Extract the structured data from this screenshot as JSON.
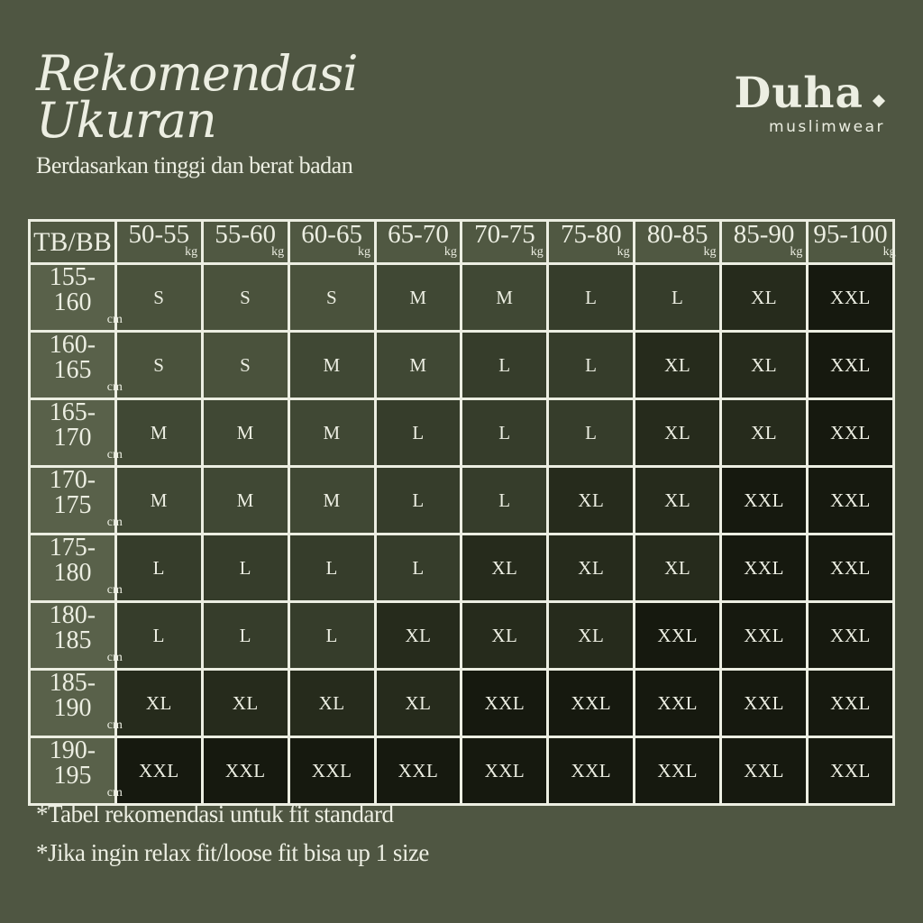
{
  "colors": {
    "background": "#4f5642",
    "border": "#eceee2",
    "text": "#eceee2",
    "header_cell_bg": "#505842",
    "label_cell_bg": "#59614a"
  },
  "header": {
    "title_line1": "Rekomendasi",
    "title_line2": "Ukuran",
    "subtitle": "Berdasarkan tinggi dan berat badan"
  },
  "brand": {
    "name": "Duha",
    "mark": "diamond-icon",
    "tagline": "muslimwear"
  },
  "notes": {
    "line1": "*Tabel rekomendasi untuk fit standard",
    "line2": "*Jika ingin relax fit/loose fit bisa up 1 size"
  },
  "chart_data": {
    "type": "table",
    "title": "Rekomendasi Ukuran",
    "subtitle": "Berdasarkan tinggi dan berat badan",
    "corner_label": "TB/BB",
    "col_header_unit": "kg",
    "row_header_unit": "cm",
    "weight_ranges_kg": [
      "50-55",
      "55-60",
      "60-65",
      "65-70",
      "70-75",
      "75-80",
      "80-85",
      "85-90",
      "95-100"
    ],
    "height_ranges_cm": [
      "155-160",
      "160-165",
      "165-170",
      "170-175",
      "175-180",
      "180-185",
      "185-190",
      "190-195"
    ],
    "sizes": [
      [
        "S",
        "S",
        "S",
        "M",
        "M",
        "L",
        "L",
        "XL",
        "XXL"
      ],
      [
        "S",
        "S",
        "M",
        "M",
        "L",
        "L",
        "XL",
        "XL",
        "XXL"
      ],
      [
        "M",
        "M",
        "M",
        "L",
        "L",
        "L",
        "XL",
        "XL",
        "XXL"
      ],
      [
        "M",
        "M",
        "M",
        "L",
        "L",
        "XL",
        "XL",
        "XXL",
        "XXL"
      ],
      [
        "L",
        "L",
        "L",
        "L",
        "XL",
        "XL",
        "XL",
        "XXL",
        "XXL"
      ],
      [
        "L",
        "L",
        "L",
        "XL",
        "XL",
        "XL",
        "XXL",
        "XXL",
        "XXL"
      ],
      [
        "XL",
        "XL",
        "XL",
        "XL",
        "XXL",
        "XXL",
        "XXL",
        "XXL",
        "XXL"
      ],
      [
        "XXL",
        "XXL",
        "XXL",
        "XXL",
        "XXL",
        "XXL",
        "XXL",
        "XXL",
        "XXL"
      ]
    ],
    "size_cell_colors": {
      "S": "#4a523c",
      "M": "#404834",
      "L": "#363d2b",
      "XL": "#262b1c",
      "XXL": "#16190f"
    }
  }
}
